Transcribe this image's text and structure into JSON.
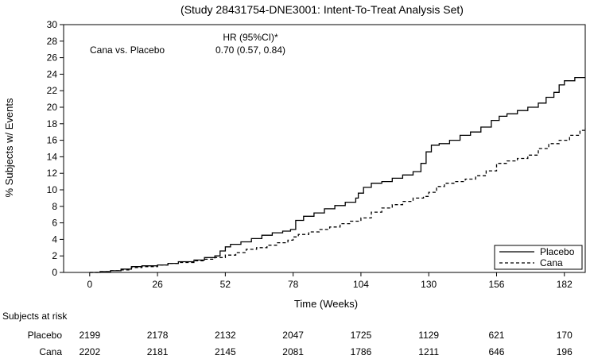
{
  "chart_data": {
    "type": "line",
    "title": "(Study 28431754-DNE3001: Intent-To-Treat Analysis Set)",
    "xlabel": "Time (Weeks)",
    "ylabel": "% Subjects w/ Events",
    "xlim": [
      -10,
      190
    ],
    "ylim": [
      0,
      30
    ],
    "xticks": [
      0,
      26,
      52,
      78,
      104,
      130,
      156,
      182
    ],
    "xtick_labels": [
      "0",
      "26",
      "52",
      "78",
      "104",
      "130",
      "156",
      "182"
    ],
    "yticks": [
      0,
      2,
      4,
      6,
      8,
      10,
      12,
      14,
      16,
      18,
      20,
      22,
      24,
      26,
      28,
      30
    ],
    "ytick_labels": [
      "0",
      "2",
      "4",
      "6",
      "8",
      "10",
      "12",
      "14",
      "16",
      "18",
      "20",
      "22",
      "24",
      "26",
      "28",
      "30"
    ],
    "grid": false,
    "legend_position": "bottom-right",
    "annotation": {
      "comparison": "Cana vs. Placebo",
      "hr_header": "HR (95%CI)*",
      "hr_value": "0.70 (0.57, 0.84)"
    },
    "series": [
      {
        "name": "Placebo",
        "style": "solid",
        "color": "#000000",
        "x": [
          0,
          4,
          8,
          12,
          16,
          20,
          26,
          30,
          34,
          40,
          44,
          48,
          50,
          52,
          54,
          58,
          62,
          66,
          70,
          74,
          77,
          79,
          82,
          86,
          90,
          94,
          98,
          102,
          103,
          105,
          108,
          112,
          116,
          120,
          124,
          127,
          129,
          131,
          134,
          138,
          142,
          146,
          150,
          154,
          157,
          160,
          164,
          168,
          172,
          175,
          178,
          180,
          182,
          186,
          192
        ],
        "y": [
          0,
          0.1,
          0.2,
          0.4,
          0.7,
          0.8,
          0.9,
          1.1,
          1.3,
          1.5,
          1.8,
          2.0,
          2.6,
          3.1,
          3.4,
          3.7,
          4.1,
          4.5,
          4.8,
          5.0,
          5.2,
          6.3,
          6.8,
          7.2,
          7.7,
          8.1,
          8.5,
          9.0,
          9.6,
          10.3,
          10.8,
          11.0,
          11.4,
          11.8,
          12.2,
          13.2,
          14.6,
          15.4,
          15.6,
          16.0,
          16.6,
          17.0,
          17.6,
          18.4,
          18.9,
          19.2,
          19.6,
          20.0,
          20.5,
          21.2,
          21.8,
          22.7,
          23.2,
          23.6,
          23.6
        ]
      },
      {
        "name": "Cana",
        "style": "dashed",
        "color": "#000000",
        "x": [
          0,
          4,
          8,
          12,
          16,
          20,
          26,
          30,
          34,
          40,
          44,
          48,
          52,
          56,
          60,
          64,
          68,
          72,
          76,
          78,
          80,
          84,
          88,
          92,
          96,
          100,
          104,
          108,
          112,
          116,
          120,
          124,
          128,
          130,
          133,
          136,
          140,
          144,
          148,
          152,
          156,
          160,
          164,
          168,
          172,
          176,
          180,
          184,
          188,
          192
        ],
        "y": [
          0,
          0.1,
          0.2,
          0.3,
          0.6,
          0.7,
          0.9,
          1.1,
          1.2,
          1.4,
          1.6,
          1.8,
          2.1,
          2.4,
          2.8,
          3.0,
          3.3,
          3.6,
          3.9,
          4.3,
          4.6,
          4.9,
          5.2,
          5.5,
          5.9,
          6.2,
          6.6,
          7.3,
          7.8,
          8.2,
          8.6,
          9.0,
          9.2,
          9.7,
          10.4,
          10.8,
          11.0,
          11.3,
          11.7,
          12.3,
          13.2,
          13.5,
          13.8,
          14.2,
          15.0,
          15.6,
          16.0,
          16.6,
          17.2,
          17.5
        ]
      }
    ],
    "risk_table": {
      "header": "Subjects at risk",
      "rows": [
        {
          "label": "Placebo",
          "values": [
            "2199",
            "2178",
            "2132",
            "2047",
            "1725",
            "1129",
            "621",
            "170"
          ]
        },
        {
          "label": "Cana",
          "values": [
            "2202",
            "2181",
            "2145",
            "2081",
            "1786",
            "1211",
            "646",
            "196"
          ]
        }
      ]
    }
  }
}
